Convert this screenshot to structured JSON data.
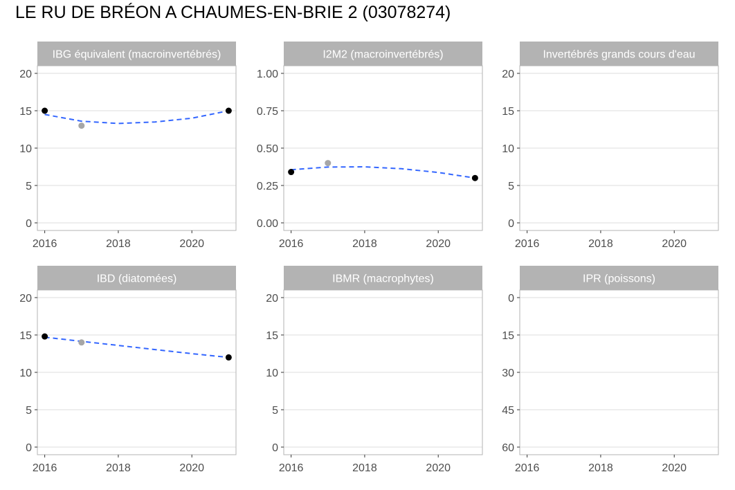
{
  "title": "LE RU DE BRÉON A CHAUMES-EN-BRIE 2 (03078274)",
  "colors": {
    "strip": "#b3b3b3",
    "grid": "#dedede",
    "border": "#b3b3b3",
    "point_main": "#000000",
    "point_other": "#a6a6a6",
    "trend": "#3366ff"
  },
  "chart_data": [
    {
      "type": "scatter",
      "title": "IBG équivalent (macroinvertébrés)",
      "xlim": [
        2015.8,
        2021.2
      ],
      "xticks": [
        2016,
        2018,
        2020
      ],
      "ylim": [
        0,
        20
      ],
      "yticks": [
        0,
        5,
        10,
        15,
        20
      ],
      "yticklabels": [
        "0",
        "5",
        "10",
        "15",
        "20"
      ],
      "reverse_y": false,
      "grid": true,
      "points": [
        {
          "x": 2016,
          "y": 15,
          "kind": "main"
        },
        {
          "x": 2017,
          "y": 13,
          "kind": "other"
        },
        {
          "x": 2021,
          "y": 15,
          "kind": "main"
        }
      ],
      "trend": [
        {
          "x": 2016,
          "y": 14.5
        },
        {
          "x": 2017,
          "y": 13.6
        },
        {
          "x": 2018,
          "y": 13.3
        },
        {
          "x": 2019,
          "y": 13.5
        },
        {
          "x": 2020,
          "y": 14.0
        },
        {
          "x": 2021,
          "y": 15.0
        }
      ]
    },
    {
      "type": "scatter",
      "title": "I2M2 (macroinvertébrés)",
      "xlim": [
        2015.8,
        2021.2
      ],
      "xticks": [
        2016,
        2018,
        2020
      ],
      "ylim": [
        0,
        1
      ],
      "yticks": [
        0,
        0.25,
        0.5,
        0.75,
        1
      ],
      "yticklabels": [
        "0.00",
        "0.25",
        "0.50",
        "0.75",
        "1.00"
      ],
      "reverse_y": false,
      "grid": true,
      "points": [
        {
          "x": 2016,
          "y": 0.34,
          "kind": "main"
        },
        {
          "x": 2017,
          "y": 0.4,
          "kind": "other"
        },
        {
          "x": 2021,
          "y": 0.3,
          "kind": "main"
        }
      ],
      "trend": [
        {
          "x": 2016,
          "y": 0.355
        },
        {
          "x": 2017,
          "y": 0.373
        },
        {
          "x": 2018,
          "y": 0.375
        },
        {
          "x": 2019,
          "y": 0.362
        },
        {
          "x": 2020,
          "y": 0.337
        },
        {
          "x": 2021,
          "y": 0.3
        }
      ]
    },
    {
      "type": "scatter",
      "title": "Invertébrés grands cours d'eau",
      "xlim": [
        2015.8,
        2021.2
      ],
      "xticks": [
        2016,
        2018,
        2020
      ],
      "ylim": [
        0,
        20
      ],
      "yticks": [
        0,
        5,
        10,
        15,
        20
      ],
      "yticklabels": [
        "0",
        "5",
        "10",
        "15",
        "20"
      ],
      "reverse_y": false,
      "grid": true,
      "points": [],
      "trend": []
    },
    {
      "type": "scatter",
      "title": "IBD (diatomées)",
      "xlim": [
        2015.8,
        2021.2
      ],
      "xticks": [
        2016,
        2018,
        2020
      ],
      "ylim": [
        0,
        20
      ],
      "yticks": [
        0,
        5,
        10,
        15,
        20
      ],
      "yticklabels": [
        "0",
        "5",
        "10",
        "15",
        "20"
      ],
      "reverse_y": false,
      "grid": true,
      "points": [
        {
          "x": 2016,
          "y": 14.8,
          "kind": "main"
        },
        {
          "x": 2017,
          "y": 14,
          "kind": "other"
        },
        {
          "x": 2021,
          "y": 12,
          "kind": "main"
        }
      ],
      "trend": [
        {
          "x": 2016,
          "y": 14.7
        },
        {
          "x": 2017,
          "y": 14.15
        },
        {
          "x": 2018,
          "y": 13.6
        },
        {
          "x": 2019,
          "y": 13.05
        },
        {
          "x": 2020,
          "y": 12.5
        },
        {
          "x": 2021,
          "y": 12.0
        }
      ]
    },
    {
      "type": "scatter",
      "title": "IBMR (macrophytes)",
      "xlim": [
        2015.8,
        2021.2
      ],
      "xticks": [
        2016,
        2018,
        2020
      ],
      "ylim": [
        0,
        20
      ],
      "yticks": [
        0,
        5,
        10,
        15,
        20
      ],
      "yticklabels": [
        "0",
        "5",
        "10",
        "15",
        "20"
      ],
      "reverse_y": false,
      "grid": true,
      "points": [],
      "trend": []
    },
    {
      "type": "scatter",
      "title": "IPR (poissons)",
      "xlim": [
        2015.8,
        2021.2
      ],
      "xticks": [
        2016,
        2018,
        2020
      ],
      "ylim": [
        0,
        60
      ],
      "yticks": [
        0,
        15,
        30,
        45,
        60
      ],
      "yticklabels": [
        "0",
        "15",
        "30",
        "45",
        "60"
      ],
      "reverse_y": true,
      "grid": true,
      "points": [],
      "trend": []
    }
  ]
}
